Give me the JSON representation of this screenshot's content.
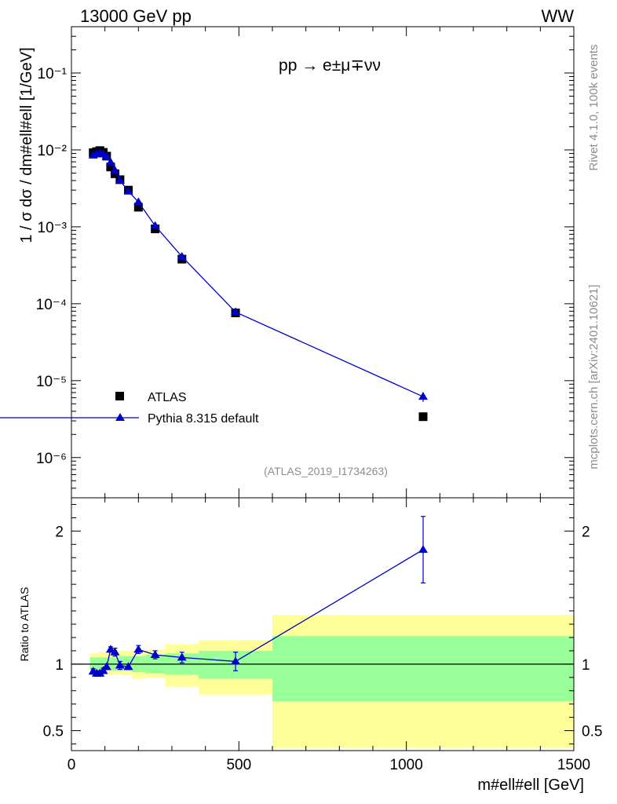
{
  "header": {
    "energy_label": "13000 GeV pp",
    "process_tag": "WW"
  },
  "side_labels": {
    "rivet": "Rivet 4.1.0,  100k events",
    "mcplots": "mcplots.cern.ch [arXiv:2401.10621]"
  },
  "chart_data": [
    {
      "type": "scatter",
      "title": "pp → e±μ∓νν",
      "ylabel": "1 / σ  dσ / dm#ell#ell [1/GeV]",
      "xlabel": "",
      "yscale": "log",
      "xlim": [
        0,
        1500
      ],
      "ylim": [
        3e-07,
        0.4
      ],
      "yticks": [
        {
          "value": 0.1,
          "label": "10⁻¹"
        },
        {
          "value": 0.01,
          "label": "10⁻²"
        },
        {
          "value": 0.001,
          "label": "10⁻³"
        },
        {
          "value": 0.0001,
          "label": "10⁻⁴"
        },
        {
          "value": 1e-05,
          "label": "10⁻⁵"
        },
        {
          "value": 1e-06,
          "label": "10⁻⁶"
        }
      ],
      "annotation": "(ATLAS_2019_I1734263)",
      "legend_position": "bottom-left",
      "series": [
        {
          "name": "ATLAS",
          "marker": "square",
          "color": "#000000",
          "x": [
            65,
            75,
            85,
            95,
            105,
            117,
            130,
            145,
            170,
            200,
            250,
            330,
            490,
            1050
          ],
          "y": [
            0.0092,
            0.0095,
            0.0098,
            0.0093,
            0.0083,
            0.006,
            0.0049,
            0.0041,
            0.003,
            0.0018,
            0.00094,
            0.00038,
            7.6e-05,
            3.4e-06
          ]
        },
        {
          "name": "Pythia 8.315 default",
          "marker": "triangle",
          "color": "#0000cc",
          "x": [
            65,
            75,
            85,
            95,
            105,
            117,
            130,
            145,
            170,
            200,
            250,
            330,
            490,
            1050
          ],
          "y": [
            0.0085,
            0.0088,
            0.0091,
            0.0088,
            0.0082,
            0.0069,
            0.0054,
            0.004,
            0.0029,
            0.0021,
            0.00103,
            0.00041,
            7.8e-05,
            6.2e-06
          ],
          "yerr": [
            0.0003,
            0.0003,
            0.0003,
            0.0003,
            0.0003,
            0.0003,
            0.0002,
            0.0002,
            0.0001,
            0.0001,
            4e-05,
            1.5e-05,
            4e-06,
            9e-07
          ]
        }
      ]
    },
    {
      "type": "line",
      "ylabel": "Ratio to ATLAS",
      "xlabel": "m#ell#ell [GeV]",
      "xlim": [
        0,
        1500
      ],
      "ylim": [
        0.35,
        2.25
      ],
      "xticks": [
        0,
        500,
        1000,
        1500
      ],
      "yticks": [
        0.5,
        1,
        2
      ],
      "reference": 1,
      "bands": [
        {
          "x0": 55,
          "x1": 80,
          "stat_lo": 0.95,
          "stat_hi": 1.05,
          "tot_lo": 0.93,
          "tot_hi": 1.08
        },
        {
          "x0": 80,
          "x1": 110,
          "stat_lo": 0.95,
          "stat_hi": 1.05,
          "tot_lo": 0.93,
          "tot_hi": 1.09
        },
        {
          "x0": 110,
          "x1": 140,
          "stat_lo": 0.95,
          "stat_hi": 1.05,
          "tot_lo": 0.92,
          "tot_hi": 1.09
        },
        {
          "x0": 140,
          "x1": 180,
          "stat_lo": 0.95,
          "stat_hi": 1.06,
          "tot_lo": 0.92,
          "tot_hi": 1.1
        },
        {
          "x0": 180,
          "x1": 220,
          "stat_lo": 0.94,
          "stat_hi": 1.06,
          "tot_lo": 0.89,
          "tot_hi": 1.1
        },
        {
          "x0": 220,
          "x1": 280,
          "stat_lo": 0.93,
          "stat_hi": 1.07,
          "tot_lo": 0.9,
          "tot_hi": 1.11
        },
        {
          "x0": 280,
          "x1": 380,
          "stat_lo": 0.92,
          "stat_hi": 1.08,
          "tot_lo": 0.83,
          "tot_hi": 1.15
        },
        {
          "x0": 380,
          "x1": 600,
          "stat_lo": 0.89,
          "stat_hi": 1.1,
          "tot_lo": 0.77,
          "tot_hi": 1.18
        },
        {
          "x0": 600,
          "x1": 1500,
          "stat_lo": 0.72,
          "stat_hi": 1.21,
          "tot_lo": 0.37,
          "tot_hi": 1.37
        }
      ],
      "series": [
        {
          "name": "Pythia 8.315 default / ATLAS",
          "color": "#0000cc",
          "x": [
            65,
            75,
            85,
            95,
            105,
            117,
            130,
            145,
            170,
            200,
            250,
            330,
            490,
            1050
          ],
          "y": [
            0.945,
            0.93,
            0.93,
            0.95,
            0.98,
            1.11,
            1.09,
            0.99,
            0.98,
            1.11,
            1.07,
            1.05,
            1.02,
            1.86
          ],
          "yerr": [
            0.02,
            0.02,
            0.02,
            0.02,
            0.02,
            0.02,
            0.03,
            0.03,
            0.02,
            0.03,
            0.03,
            0.04,
            0.07,
            0.25
          ]
        }
      ]
    }
  ]
}
